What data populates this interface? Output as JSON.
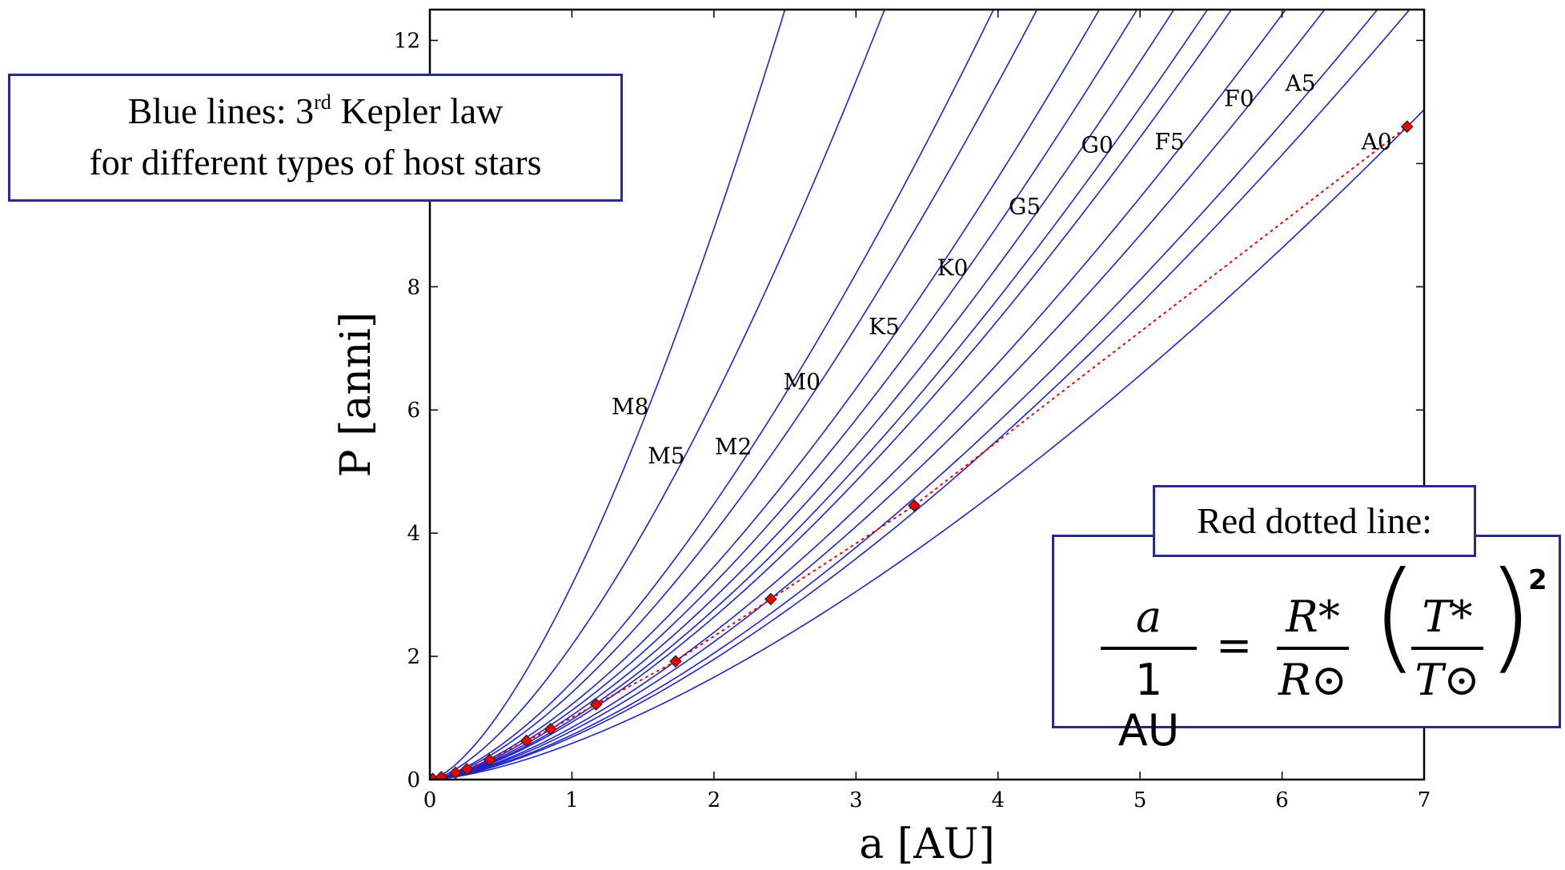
{
  "chart_data": {
    "type": "line",
    "xlabel": "a [AU]",
    "ylabel": "P [anni]",
    "xlim": [
      0,
      7
    ],
    "ylim": [
      0,
      12.5
    ],
    "xticks": [
      0,
      1,
      2,
      3,
      4,
      5,
      6,
      7
    ],
    "yticks": [
      0,
      2,
      4,
      6,
      8,
      10,
      12
    ],
    "grid": false,
    "series_color": "#2222cc",
    "blue_series": [
      {
        "label": "M8",
        "mass": 0.1
      },
      {
        "label": "M5",
        "mass": 0.21
      },
      {
        "label": "M2",
        "mass": 0.4
      },
      {
        "label": "M0",
        "mass": 0.5
      },
      {
        "label": "K5",
        "mass": 0.67
      },
      {
        "label": "K0",
        "mass": 0.79
      },
      {
        "label": "G5",
        "mass": 0.92
      },
      {
        "label": "G0",
        "mass": 1.05
      },
      {
        "label": "",
        "mass": 1.15
      },
      {
        "label": "F5",
        "mass": 1.4
      },
      {
        "label": "F0",
        "mass": 1.6
      },
      {
        "label": "A5",
        "mass": 1.9
      },
      {
        "label": "",
        "mass": 2.1
      },
      {
        "label": "A0",
        "mass": 2.9
      }
    ],
    "red_series": {
      "color": "#ee0000",
      "points": [
        {
          "x": 0.02,
          "y": 0.01
        },
        {
          "x": 0.08,
          "y": 0.04
        },
        {
          "x": 0.18,
          "y": 0.11
        },
        {
          "x": 0.26,
          "y": 0.17
        },
        {
          "x": 0.42,
          "y": 0.32
        },
        {
          "x": 0.68,
          "y": 0.63
        },
        {
          "x": 0.85,
          "y": 0.82
        },
        {
          "x": 1.17,
          "y": 1.22
        },
        {
          "x": 1.73,
          "y": 1.92
        },
        {
          "x": 2.4,
          "y": 2.93
        },
        {
          "x": 3.41,
          "y": 4.45
        },
        {
          "x": 6.88,
          "y": 10.6
        }
      ]
    }
  },
  "annotations": {
    "kepler_line1_pre": "Blue lines: 3",
    "kepler_sup": "rd",
    "kepler_line1_post": " Kepler law",
    "kepler_line2": "for different types of host stars",
    "red_dotted_label": "Red dotted line:",
    "formula": {
      "lhs_num": "a",
      "lhs_den": "1 AU",
      "equals": "=",
      "r_num": "R*",
      "r_den": "R⊙",
      "t_num": "T*",
      "t_den": "T⊙",
      "exponent": "2"
    }
  }
}
